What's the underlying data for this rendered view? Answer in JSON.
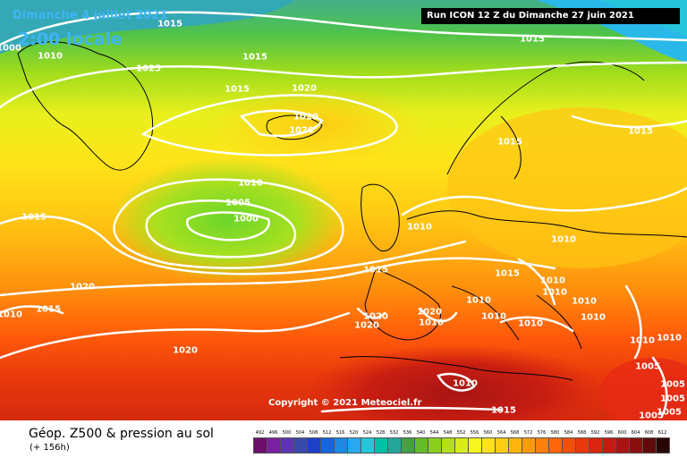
{
  "header": {
    "date_label": "Dimanche 4 juillet 2021",
    "time_label": "2:00 locale",
    "run_label": "Run ICON 12 Z du Dimanche 27 juin 2021"
  },
  "footer": {
    "copyright": "Copyright © 2021 Meteociel.fr",
    "title": "Géop. Z500 & pression au sol",
    "subtitle": "(+ 156h)"
  },
  "isobars": [
    "1015",
    "1010",
    "1025",
    "1015",
    "1015",
    "1020",
    "1020",
    "1020",
    "1015",
    "1015",
    "1015",
    "1010",
    "1005",
    "1000",
    "1010",
    "1015",
    "1010",
    "1020",
    "1015",
    "1010",
    "1010",
    "1015",
    "1010",
    "1010",
    "1020",
    "1020",
    "1020",
    "1010",
    "1010",
    "1010",
    "1010",
    "1010",
    "1010",
    "1010",
    "1020",
    "1010",
    "1015",
    "1005",
    "1005",
    "1005",
    "1005",
    "1005",
    "1000",
    "1015"
  ],
  "legend": {
    "levels": [
      "492",
      "496",
      "500",
      "504",
      "508",
      "512",
      "516",
      "520",
      "524",
      "528",
      "532",
      "536",
      "540",
      "544",
      "548",
      "552",
      "556",
      "560",
      "564",
      "568",
      "572",
      "576",
      "580",
      "584",
      "588",
      "592",
      "596",
      "600",
      "604",
      "608",
      "612"
    ],
    "colors": [
      "#6b0f6b",
      "#7b1fa2",
      "#5e35b1",
      "#3949ab",
      "#1e40c8",
      "#1565e0",
      "#1e88e5",
      "#29a8f0",
      "#26c6da",
      "#00bfa5",
      "#26a69a",
      "#43a047",
      "#66bb2a",
      "#8bcf1e",
      "#b4e01a",
      "#d8ec1c",
      "#f5f51f",
      "#ffe21a",
      "#ffcc14",
      "#ffb410",
      "#ff9a0e",
      "#ff800c",
      "#ff660a",
      "#f54d0a",
      "#e8380c",
      "#d9260e",
      "#c41a12",
      "#a81414",
      "#8a1010",
      "#5e0b0b",
      "#2a0505"
    ]
  }
}
